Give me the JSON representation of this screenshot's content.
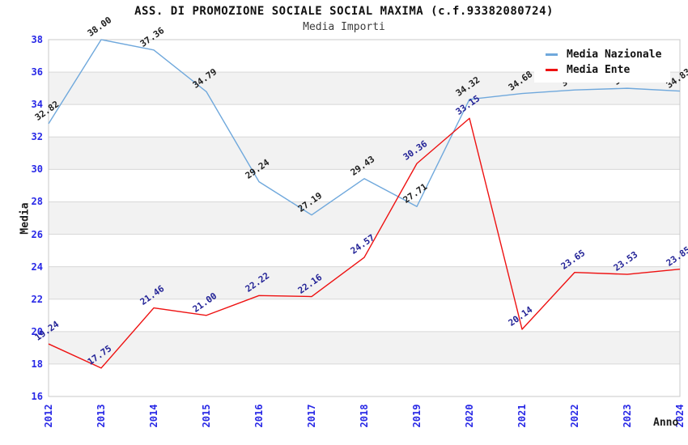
{
  "chart_data": {
    "type": "line",
    "title": "ASS. DI PROMOZIONE SOCIALE SOCIAL MAXIMA (c.f.93382080724)",
    "subtitle": "Media Importi",
    "xlabel": "Anno",
    "ylabel": "Media",
    "x": [
      "2012",
      "2013",
      "2014",
      "2015",
      "2016",
      "2017",
      "2018",
      "2019",
      "2020",
      "2021",
      "2022",
      "2023",
      "2024"
    ],
    "ylim": [
      16,
      38
    ],
    "ytick_step": 2,
    "grid": "horizontal-bands-on",
    "legend_position": "top-right",
    "series": [
      {
        "name": "Media Nazionale",
        "color": "#6fa8dc",
        "label_color": "#1e1e1e",
        "values": [
          32.82,
          38.0,
          37.36,
          34.79,
          29.24,
          27.19,
          29.43,
          27.71,
          34.32,
          34.68,
          34.9,
          35.0,
          34.83
        ]
      },
      {
        "name": "Media Ente",
        "color": "#ee1111",
        "label_color": "#222296",
        "values": [
          19.24,
          17.75,
          21.46,
          21.0,
          22.22,
          22.16,
          24.57,
          30.36,
          33.15,
          20.14,
          23.65,
          23.53,
          23.85
        ]
      }
    ],
    "colors": {
      "background": "#ffffff",
      "band": "#f2f2f2",
      "gridline": "#d8d8d8",
      "plot_border": "#c8c8c8",
      "tick_label": "#2828e6"
    }
  }
}
